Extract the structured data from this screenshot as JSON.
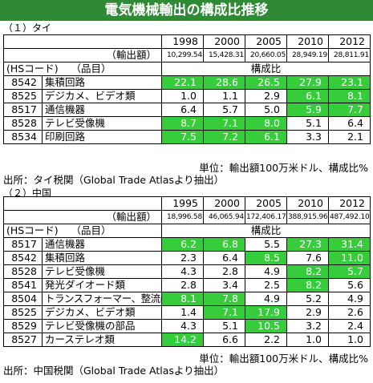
{
  "title": "電気機械輸出の構成比推移",
  "thailand": {
    "section_label": "（１）タイ",
    "years": [
      "1998",
      "2000",
      "2005",
      "2010",
      "2012"
    ],
    "export_label": "（輸出額）",
    "export_values": [
      "10,299.54",
      "15,428.31",
      "20,660.05",
      "28,949.19",
      "28,811.91"
    ],
    "hs_header": "(HSコード)",
    "item_header": "（品目）",
    "ratio_header": "構成比",
    "rows": [
      {
        "code": "8542",
        "item": "集積回路",
        "values": [
          "22.1",
          "28.6",
          "26.5",
          "27.9",
          "23.1"
        ],
        "hl": [
          true,
          true,
          true,
          true,
          true
        ]
      },
      {
        "code": "8525",
        "item": "デジカメ、ビデオ類",
        "values": [
          "1.0",
          "1.1",
          "2.9",
          "6.1",
          "8.1"
        ],
        "hl": [
          false,
          false,
          false,
          true,
          true
        ]
      },
      {
        "code": "8517",
        "item": "通信機器",
        "values": [
          "6.4",
          "5.7",
          "5.0",
          "5.9",
          "7.7"
        ],
        "hl": [
          false,
          false,
          false,
          true,
          true
        ]
      },
      {
        "code": "8528",
        "item": "テレビ受像機",
        "values": [
          "8.7",
          "7.1",
          "8.0",
          "5.1",
          "6.4"
        ],
        "hl": [
          true,
          true,
          true,
          false,
          false
        ]
      },
      {
        "code": "8534",
        "item": "印刷回路",
        "values": [
          "7.5",
          "7.2",
          "6.1",
          "3.3",
          "2.1"
        ],
        "hl": [
          true,
          true,
          true,
          false,
          false
        ]
      }
    ],
    "unit_note": "単位：輸出額100万米ドル、構成比%",
    "source": "出所：タイ税関（Global Trade Atlasより抽出）"
  },
  "china": {
    "section_label": "（２）中国",
    "years": [
      "1995",
      "2000",
      "2005",
      "2010",
      "2012"
    ],
    "export_label": "（輸出額）",
    "export_values": [
      "18,996.58",
      "46,065.94",
      "172,406.17",
      "388,915.96",
      "487,492.10"
    ],
    "hs_header": "(HSコード)",
    "item_header": "（品目）",
    "ratio_header": "構成比",
    "rows": [
      {
        "code": "8517",
        "item": "通信機器",
        "values": [
          "6.2",
          "6.8",
          "5.5",
          "27.3",
          "31.4"
        ],
        "hl": [
          true,
          true,
          false,
          true,
          true
        ]
      },
      {
        "code": "8542",
        "item": "集積回路",
        "values": [
          "2.3",
          "6.4",
          "8.5",
          "7.6",
          "11.0"
        ],
        "hl": [
          false,
          false,
          true,
          false,
          true
        ]
      },
      {
        "code": "8528",
        "item": "テレビ受像機",
        "values": [
          "4.3",
          "2.8",
          "4.9",
          "8.2",
          "5.7"
        ],
        "hl": [
          false,
          false,
          false,
          true,
          true
        ]
      },
      {
        "code": "8541",
        "item": "発光ダイオード類",
        "values": [
          "2.8",
          "3.4",
          "2.5",
          "8.2",
          "5.6"
        ],
        "hl": [
          false,
          false,
          false,
          true,
          false
        ]
      },
      {
        "code": "8504",
        "item": "トランスフォーマー、整流器など",
        "values": [
          "8.1",
          "7.8",
          "4.9",
          "5.2",
          "4.9"
        ],
        "hl": [
          true,
          true,
          false,
          false,
          false
        ],
        "small": true
      },
      {
        "code": "8525",
        "item": "デジカメ、ビデオ類",
        "values": [
          "1.4",
          "7.1",
          "17.9",
          "2.9",
          "2.6"
        ],
        "hl": [
          false,
          true,
          true,
          false,
          false
        ]
      },
      {
        "code": "8529",
        "item": "テレビ受像機の部品",
        "values": [
          "4.3",
          "5.1",
          "10.5",
          "3.2",
          "2.4"
        ],
        "hl": [
          false,
          false,
          true,
          false,
          false
        ]
      },
      {
        "code": "8527",
        "item": "カーステレオ類",
        "values": [
          "14.2",
          "6.6",
          "2.2",
          "1.0",
          "1.0"
        ],
        "hl": [
          true,
          false,
          false,
          false,
          false
        ]
      }
    ],
    "unit_note": "単位：輸出額100万米ドル、構成比%",
    "source": "出所：中国税関（Global Trade Atlasより抽出）"
  }
}
